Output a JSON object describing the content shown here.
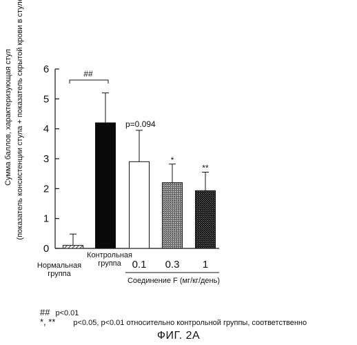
{
  "chart_data": {
    "type": "bar",
    "ylabel_line1": "Сумма баллов, характеризующая стул",
    "ylabel_line2": "(показатель консистенции стула + показатель скрытой крови в стуле)",
    "ylim": [
      0,
      6
    ],
    "yticks": [
      "0",
      "1",
      "2",
      "3",
      "4",
      "5",
      "6"
    ],
    "grid": false,
    "categories": [
      {
        "label_lines": [
          "Нормальная",
          "группа"
        ],
        "value": 0.1,
        "error": 0.38,
        "fill": "hatch",
        "annotation": ""
      },
      {
        "label_lines": [
          "Контрольная",
          "группа"
        ],
        "value": 4.2,
        "error": 1.0,
        "fill": "black",
        "annotation": ""
      },
      {
        "label": "0.1",
        "value": 2.9,
        "error": 1.05,
        "fill": "white",
        "annotation": "p=0.094"
      },
      {
        "label": "0.3",
        "value": 2.2,
        "error": 0.62,
        "fill": "gray",
        "annotation": "*"
      },
      {
        "label": "1",
        "value": 1.93,
        "error": 0.62,
        "fill": "darkgray",
        "annotation": "**"
      }
    ],
    "compound_label": "Соединение F (мг/кг/день)",
    "bracket_label": "##"
  },
  "colors": {
    "axis": "#111111",
    "black_bar": "#0a0a0a",
    "gray_bar": "#7a7a7a",
    "darkgray_bar": "#2a2a2a",
    "white_bar": "#ffffff"
  },
  "footnotes": {
    "line1_symbol": "##",
    "line1_text": "p<0.01",
    "line2_symbol": "*,  **",
    "line2_text": "p<0.05, p<0.01 относительно контрольной группы, соответственно"
  },
  "caption": "ФИГ. 2А"
}
